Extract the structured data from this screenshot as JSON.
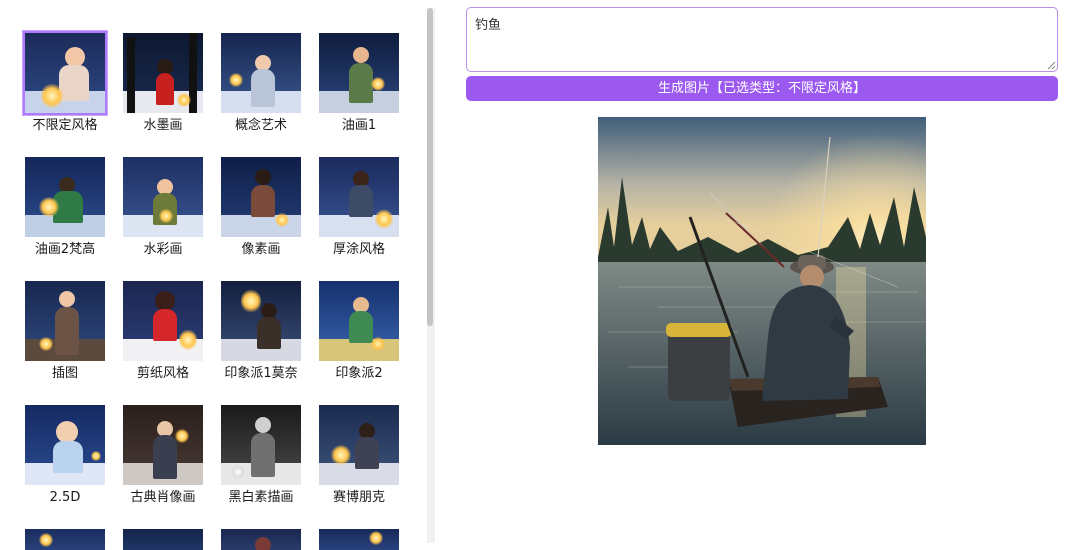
{
  "prompt": {
    "value": "钓鱼"
  },
  "generate_button": {
    "label": "生成图片【已选类型：不限定风格】"
  },
  "styles": [
    {
      "label": "不限定风格",
      "selected": true
    },
    {
      "label": "水墨画",
      "selected": false
    },
    {
      "label": "概念艺术",
      "selected": false
    },
    {
      "label": "油画1",
      "selected": false
    },
    {
      "label": "油画2梵高",
      "selected": false
    },
    {
      "label": "水彩画",
      "selected": false
    },
    {
      "label": "像素画",
      "selected": false
    },
    {
      "label": "厚涂风格",
      "selected": false
    },
    {
      "label": "插图",
      "selected": false
    },
    {
      "label": "剪纸风格",
      "selected": false
    },
    {
      "label": "印象派1莫奈",
      "selected": false
    },
    {
      "label": "印象派2",
      "selected": false
    },
    {
      "label": "2.5D",
      "selected": false
    },
    {
      "label": "古典肖像画",
      "selected": false
    },
    {
      "label": "黑白素描画",
      "selected": false
    },
    {
      "label": "赛博朋克",
      "selected": false
    }
  ],
  "colors": {
    "accent": "#9b59f0",
    "selected_border": "#b07aff",
    "prompt_border": "#b98ee8"
  }
}
